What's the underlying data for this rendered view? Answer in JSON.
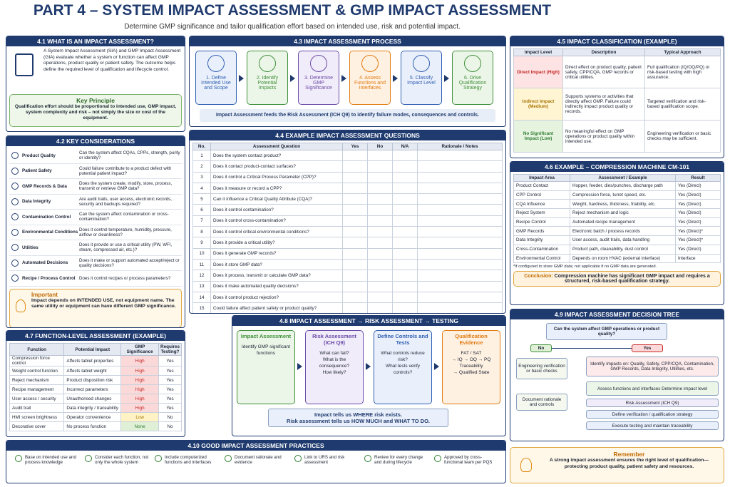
{
  "header": {
    "title": "PART 4 – SYSTEM IMPACT ASSESSMENT & GMP IMPACT ASSESSMENT",
    "subtitle": "Determine GMP significance and tailor qualification effort based on intended use, risk and potential impact."
  },
  "s41": {
    "title": "4.1 WHAT IS AN IMPACT ASSESSMENT?",
    "text": "A System Impact Assessment (SIA) and GMP Impact Assessment (GIA) evaluate whether a system or function can affect GMP operations, product quality or patient safety. The outcome helps define the required level of qualification and lifecycle control.",
    "principle_title": "Key Principle",
    "principle_text": "Qualification effort should be proportional to intended use, GMP impact, system complexity and risk – not simply the size or cost of the equipment."
  },
  "s42": {
    "title": "4.2 KEY CONSIDERATIONS",
    "rows": [
      [
        "Product Quality",
        "Can the system affect CQAs, CPPs, strength, purity or identity?"
      ],
      [
        "Patient Safety",
        "Could failure contribute to a product defect with potential patient impact?"
      ],
      [
        "GMP Records & Data",
        "Does the system create, modify, store, process, transmit or retrieve GMP data?"
      ],
      [
        "Data Integrity",
        "Are audit trails, user access, electronic records, security and backups required?"
      ],
      [
        "Contamination Control",
        "Can the system affect contamination or cross-contamination?"
      ],
      [
        "Environmental Conditions",
        "Does it control temperature, humidity, pressure, airflow or cleanliness?"
      ],
      [
        "Utilities",
        "Does it provide or use a critical utility (PW, WFI, steam, compressed air, etc.)?"
      ],
      [
        "Automated Decisions",
        "Does it make or support automated accept/reject or quality decisions?"
      ],
      [
        "Recipe / Process Control",
        "Does it control recipes or process parameters?"
      ]
    ],
    "note_title": "Important",
    "note_text": "Impact depends on INTENDED USE, not equipment name. The same utility or equipment can have different GMP significance."
  },
  "s43": {
    "title": "4.3 IMPACT ASSESSMENT PROCESS",
    "steps": [
      "1. Define Intended Use and Scope",
      "2. Identify Potential Impacts",
      "3. Determine GMP Significance",
      "4. Assess Functions and Interfaces",
      "5. Classify Impact Level",
      "6. Drive Qualification Strategy"
    ],
    "footer": "Impact Assessment feeds the Risk Assessment (ICH Q9) to identify failure modes, consequences and controls."
  },
  "s44": {
    "title": "4.4 EXAMPLE IMPACT ASSESSMENT QUESTIONS",
    "headers": [
      "No.",
      "Assessment Question",
      "Yes",
      "No",
      "N/A",
      "Rationale / Notes"
    ],
    "rows": [
      [
        1,
        "Does the system contact product?"
      ],
      [
        2,
        "Does it contact product-contact surfaces?"
      ],
      [
        3,
        "Does it control a Critical Process Parameter (CPP)?"
      ],
      [
        4,
        "Does it measure or record a CPP?"
      ],
      [
        5,
        "Can it influence a Critical Quality Attribute (CQA)?"
      ],
      [
        6,
        "Does it control contamination?"
      ],
      [
        7,
        "Does it control cross-contamination?"
      ],
      [
        8,
        "Does it control critical environmental conditions?"
      ],
      [
        9,
        "Does it provide a critical utility?"
      ],
      [
        10,
        "Does it generate GMP records?"
      ],
      [
        11,
        "Does it store GMP data?"
      ],
      [
        12,
        "Does it process, transmit or calculate GMP data?"
      ],
      [
        13,
        "Does it make automated quality decisions?"
      ],
      [
        14,
        "Does it control product rejection?"
      ],
      [
        15,
        "Could failure affect patient safety or product quality?"
      ]
    ]
  },
  "s45": {
    "title": "4.5 IMPACT CLASSIFICATION (EXAMPLE)",
    "headers": [
      "Impact Level",
      "Description",
      "Typical Approach"
    ],
    "rows": [
      [
        "Direct Impact (High)",
        "Direct effect on product quality, patient safety, CPP/CQA, GMP records or critical utilities.",
        "Full qualification (IQ/OQ/PQ) or risk-based testing with high assurance."
      ],
      [
        "Indirect Impact (Medium)",
        "Supports systems or activities that directly affect GMP. Failure could indirectly impact product quality or records.",
        "Targeted verification and risk-based qualification scope."
      ],
      [
        "No Significant Impact (Low)",
        "No meaningful effect on GMP operations or product quality within intended use.",
        "Engineering verification or basic checks may be sufficient."
      ]
    ]
  },
  "s46": {
    "title": "4.6 EXAMPLE – COMPRESSION MACHINE CM-101",
    "headers": [
      "Impact Area",
      "Assessment / Example",
      "Result"
    ],
    "rows": [
      [
        "Product Contact",
        "Hopper, feeder, dies/punches, discharge path",
        "Yes (Direct)"
      ],
      [
        "CPP Control",
        "Compression force, turret speed, etc.",
        "Yes (Direct)"
      ],
      [
        "CQA Influence",
        "Weight, hardness, thickness, friability, etc.",
        "Yes (Direct)"
      ],
      [
        "Reject System",
        "Reject mechanism and logic",
        "Yes (Direct)"
      ],
      [
        "Recipe Control",
        "Automated recipe management",
        "Yes (Direct)"
      ],
      [
        "GMP Records",
        "Electronic batch / process records",
        "Yes (Direct)*"
      ],
      [
        "Data Integrity",
        "User access, audit trails, data handling",
        "Yes (Direct)*"
      ],
      [
        "Cross-Contamination",
        "Product path, cleanability, dust control",
        "Yes (Direct)"
      ],
      [
        "Environmental Control",
        "Depends on room HVAC (external interface)",
        "Interface"
      ]
    ],
    "note": "*If configured to store GMP data; not applicable if no GMP data are generated.",
    "conclusion_label": "Conclusion:",
    "conclusion_text": "Compression machine has significant GMP impact and requires a structured, risk-based qualification strategy."
  },
  "s47": {
    "title": "4.7 FUNCTION-LEVEL ASSESSMENT (EXAMPLE)",
    "headers": [
      "Function",
      "Potential Impact",
      "GMP Significance",
      "Requires Testing?"
    ],
    "rows": [
      [
        "Compression force control",
        "Affects tablet properties",
        "High",
        "Yes"
      ],
      [
        "Weight control function",
        "Affects tablet weight",
        "High",
        "Yes"
      ],
      [
        "Reject mechanism",
        "Product disposition risk",
        "High",
        "Yes"
      ],
      [
        "Recipe management",
        "Incorrect parameters",
        "High",
        "Yes"
      ],
      [
        "User access / security",
        "Unauthorised changes",
        "High",
        "Yes"
      ],
      [
        "Audit trail",
        "Data integrity / traceability",
        "High",
        "Yes"
      ],
      [
        "HMI screen brightness",
        "Operator convenience",
        "Low",
        "No"
      ],
      [
        "Decorative cover",
        "No process function",
        "None",
        "No"
      ]
    ]
  },
  "s48": {
    "title": "4.8 IMPACT ASSESSMENT → RISK ASSESSMENT → TESTING",
    "boxes": [
      {
        "title": "Impact Assessment",
        "text": [
          "Identify GMP significant functions"
        ]
      },
      {
        "title": "Risk Assessment (ICH Q9)",
        "text": [
          "What can fail?",
          "What is the consequence?",
          "How likely?"
        ]
      },
      {
        "title": "Define Controls and Tests",
        "text": [
          "What controls reduce risk?",
          "What tests verify controls?"
        ]
      },
      {
        "title": "Qualification Evidence",
        "text": [
          "FAT / SAT",
          "→ IQ → OQ → PQ",
          "Traceability",
          "→ Qualified State"
        ]
      }
    ],
    "footer": [
      "Impact tells us WHERE risk exists.",
      "Risk assessment tells us HOW MUCH and WHAT TO DO."
    ]
  },
  "s49": {
    "title": "4.9 IMPACT ASSESSMENT DECISION TREE",
    "question": "Can the system affect GMP operations or product quality?",
    "no": "No",
    "yes": "Yes",
    "no_steps": [
      "Engineering verification or basic checks",
      "Document rationale and controls"
    ],
    "yes_steps": [
      "Identify impacts on: Quality, Safety, CPP/CQA, Contamination, GMP Records, Data Integrity, Utilities, etc.",
      "Assess functions and interfaces Determine impact level",
      "Risk Assessment (ICH Q9)",
      "Define verification / qualification strategy",
      "Execute testing and maintain traceability"
    ]
  },
  "s410": {
    "title": "4.10 GOOD IMPACT ASSESSMENT PRACTICES",
    "items": [
      "Base on intended use and process knowledge",
      "Consider each function, not only the whole system",
      "Include computerized functions and interfaces",
      "Document rationale and evidence",
      "Link to URS and risk assessment",
      "Review for every change and during lifecycle",
      "Approved by cross-functional team per PQS"
    ]
  },
  "remember": {
    "title": "Remember",
    "text": "A strong impact assessment ensures the right level of qualification—protecting product quality, patient safety and resources."
  }
}
